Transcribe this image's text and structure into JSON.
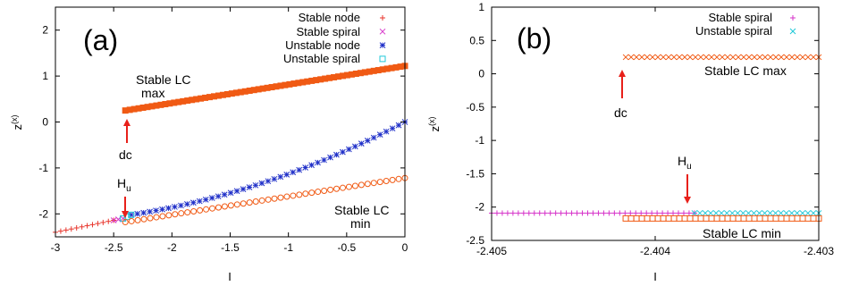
{
  "chart_data": [
    {
      "type": "scatter",
      "panel_label": "(a)",
      "xlabel": "I",
      "ylabel": "z(x)",
      "ylabel_main": "z",
      "ylabel_sup": "(x)",
      "xlim": [
        -3,
        0
      ],
      "ylim": [
        -2.5,
        2.5
      ],
      "xticks": [
        -3,
        -2.5,
        -2,
        -1.5,
        -1,
        -0.5,
        0
      ],
      "yticks": [
        -2,
        -1,
        0,
        1,
        2
      ],
      "xtick_labels": [
        "-3",
        "-2.5",
        "-2",
        "-1.5",
        "-1",
        "-0.5",
        "0"
      ],
      "ytick_labels": [
        "-2",
        "-1",
        "0",
        "1",
        "2"
      ],
      "legend_position": "top-right",
      "series": [
        {
          "name": "Stable node",
          "marker": "plus",
          "color": "#e8362d",
          "x_range": [
            -3,
            -2.5
          ],
          "y_values": [
            -2.4,
            -2.14
          ]
        },
        {
          "name": "Stable spiral",
          "marker": "x",
          "color": "#d633c9",
          "x_range": [
            -2.5,
            -2.42
          ],
          "y_values": [
            -2.14,
            -2.1
          ]
        },
        {
          "name": "Unstable node",
          "marker": "star",
          "color": "#1f2fc8",
          "x_range": [
            -2.35,
            0
          ],
          "y_values": [
            -2.02,
            0.0
          ]
        },
        {
          "name": "Unstable spiral",
          "marker": "square",
          "color": "#20c8d8",
          "x_range": [
            -2.42,
            -2.35
          ],
          "y_values": [
            -2.1,
            -2.02
          ]
        }
      ],
      "extra_series": [
        {
          "label": "Stable LC max",
          "marker": "square-filled",
          "color": "#f05a14",
          "x_range": [
            -2.4,
            0
          ],
          "y_values": [
            0.25,
            1.22
          ]
        },
        {
          "label": "Stable LC min",
          "marker": "circle",
          "color": "#f05a14",
          "x_range": [
            -2.4,
            0
          ],
          "y_values": [
            -2.18,
            -1.22
          ]
        }
      ],
      "annotations": {
        "lc_max_line1": "Stable LC",
        "lc_max_line2": "max",
        "dc": "dc",
        "hu_main": "H",
        "hu_sub": "u",
        "lc_min_line1": "Stable LC",
        "lc_min_line2": "min"
      },
      "legend": [
        {
          "label": "Stable node",
          "marker": "plus",
          "color": "#e8362d"
        },
        {
          "label": "Stable spiral",
          "marker": "x",
          "color": "#d633c9"
        },
        {
          "label": "Unstable node",
          "marker": "star",
          "color": "#1f2fc8"
        },
        {
          "label": "Unstable spiral",
          "marker": "square",
          "color": "#20c8d8"
        }
      ]
    },
    {
      "type": "scatter",
      "panel_label": "(b)",
      "xlabel": "I",
      "ylabel": "z(x)",
      "ylabel_main": "z",
      "ylabel_sup": "(x)",
      "xlim": [
        -2.405,
        -2.403
      ],
      "ylim": [
        -2.5,
        1
      ],
      "xticks": [
        -2.405,
        -2.404,
        -2.403
      ],
      "yticks": [
        -2.5,
        -2,
        -1.5,
        -1,
        -0.5,
        0,
        0.5,
        1
      ],
      "xtick_labels": [
        "-2.405",
        "-2.404",
        "-2.403"
      ],
      "ytick_labels": [
        "-2.5",
        "-2",
        "-1.5",
        "-1",
        "-0.5",
        "0",
        "0.5",
        "1"
      ],
      "legend_position": "top-right",
      "series": [
        {
          "name": "Stable spiral",
          "marker": "plus",
          "color": "#d633c9",
          "x_range": [
            -2.405,
            -2.40376
          ],
          "y": -2.09
        },
        {
          "name": "Unstable spiral",
          "marker": "x",
          "color": "#20c8d8",
          "x_range": [
            -2.40376,
            -2.403
          ],
          "y": -2.09
        }
      ],
      "extra_series": [
        {
          "label": "Stable LC max",
          "marker": "x",
          "color": "#f05a14",
          "x_range": [
            -2.40418,
            -2.403
          ],
          "y": 0.25
        },
        {
          "label": "Stable LC min",
          "marker": "square",
          "color": "#f05a14",
          "x_range": [
            -2.40418,
            -2.403
          ],
          "y": -2.17
        }
      ],
      "annotations": {
        "lc_max": "Stable LC max",
        "dc": "dc",
        "hu_main": "H",
        "hu_sub": "u",
        "lc_min": "Stable LC min"
      },
      "legend": [
        {
          "label": "Stable spiral",
          "marker": "plus",
          "color": "#d633c9"
        },
        {
          "label": "Unstable spiral",
          "marker": "x",
          "color": "#20c8d8"
        }
      ]
    }
  ]
}
